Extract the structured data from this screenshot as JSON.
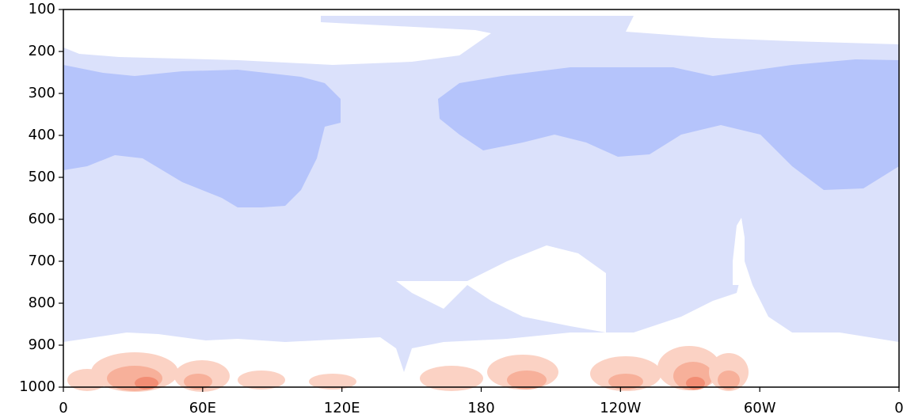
{
  "chart_data": {
    "type": "contour",
    "xlim": [
      0,
      360
    ],
    "xticks": [
      0,
      {
        "value": 60,
        "label": "60E"
      },
      {
        "value": 120,
        "label": "120E"
      },
      180,
      {
        "value": 240,
        "label": "120W"
      },
      {
        "value": 300,
        "label": "60W"
      },
      {
        "value": 360,
        "label": "0"
      }
    ],
    "ylim": [
      1000,
      100
    ],
    "yticks": [
      100,
      200,
      300,
      400,
      500,
      600,
      700,
      800,
      900,
      1000
    ]
  }
}
